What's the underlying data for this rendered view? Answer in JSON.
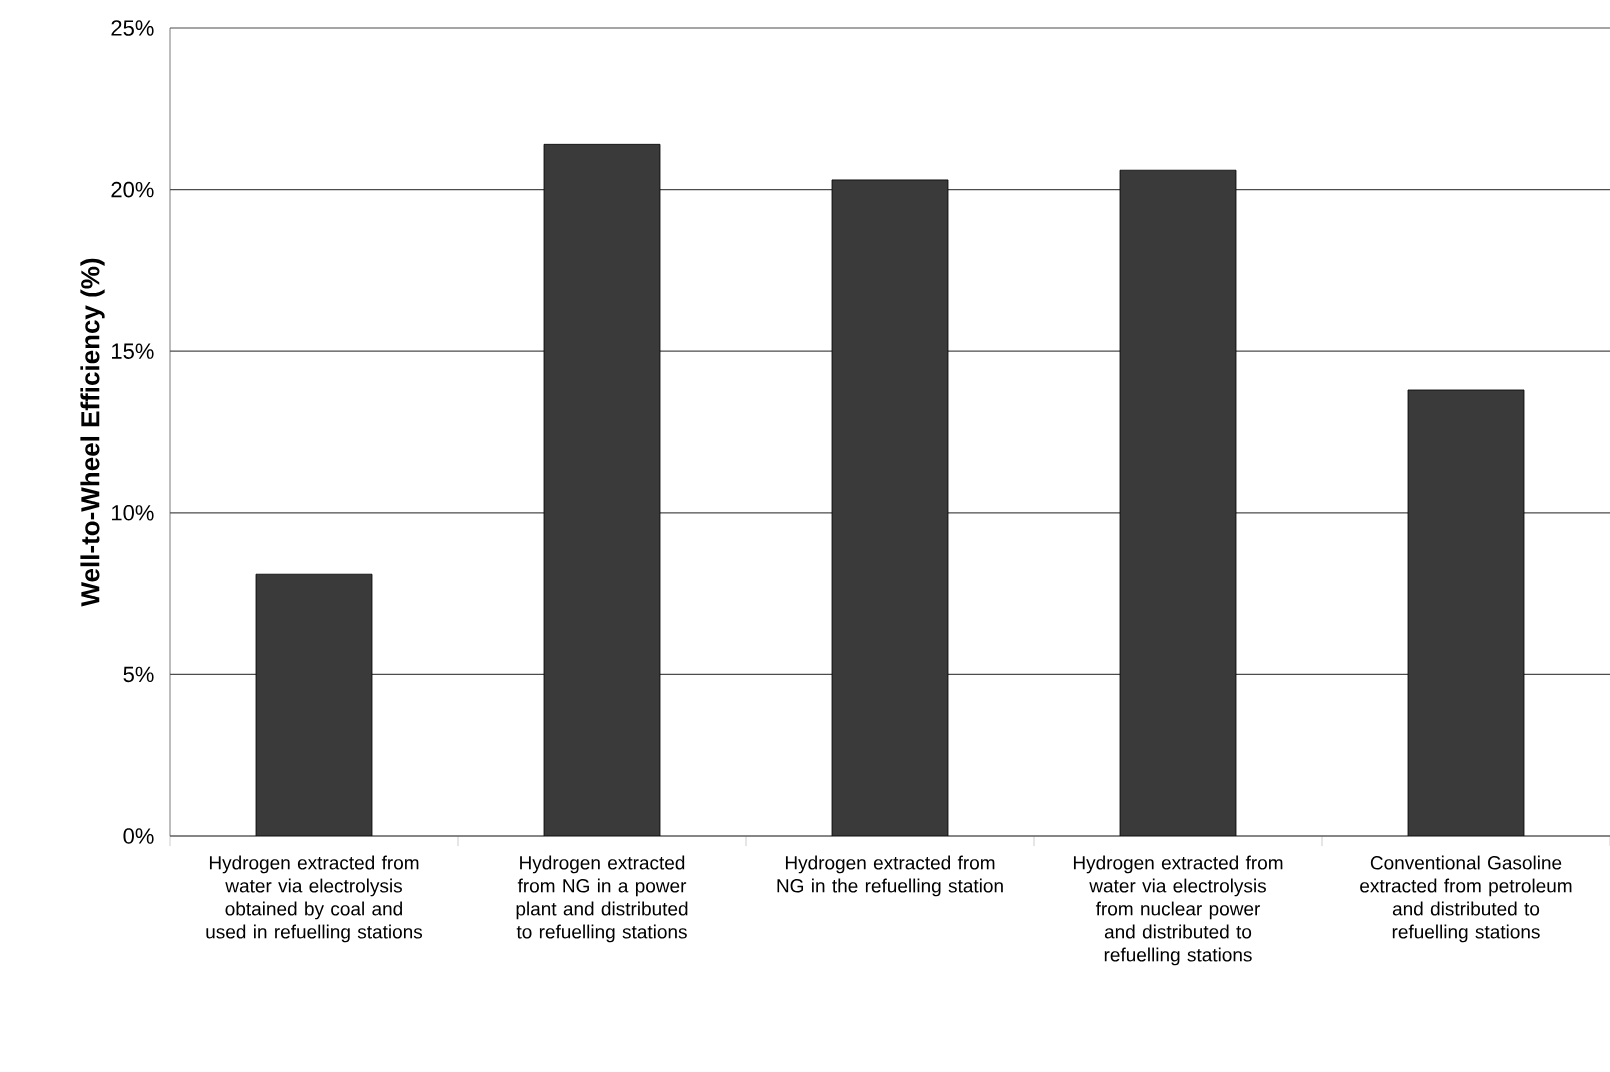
{
  "chart_data": {
    "type": "bar",
    "ylabel": "Well-to-Wheel Efficiency (%)",
    "categories": [
      "Hydrogen extracted from water via electrolysis obtained by coal and used in refuelling stations",
      "Hydrogen extracted from NG in a power plant and distributed to refuelling stations",
      "Hydrogen extracted from NG in the refuelling station",
      "Hydrogen extracted from water via electrolysis from nuclear power and distributed to refuelling stations",
      "Conventional Gasoline extracted from petroleum and distributed to refuelling stations"
    ],
    "values": [
      8.1,
      21.4,
      20.3,
      20.6,
      13.8
    ],
    "color": "#3a3a3a",
    "ylim": [
      0,
      25
    ],
    "yticks": [
      {
        "value": 0,
        "label": "0%"
      },
      {
        "value": 5,
        "label": "5%"
      },
      {
        "value": 10,
        "label": "10%"
      },
      {
        "value": 15,
        "label": "15%"
      },
      {
        "value": 20,
        "label": "20%"
      },
      {
        "value": 25,
        "label": "25%"
      }
    ],
    "grid": "y"
  }
}
